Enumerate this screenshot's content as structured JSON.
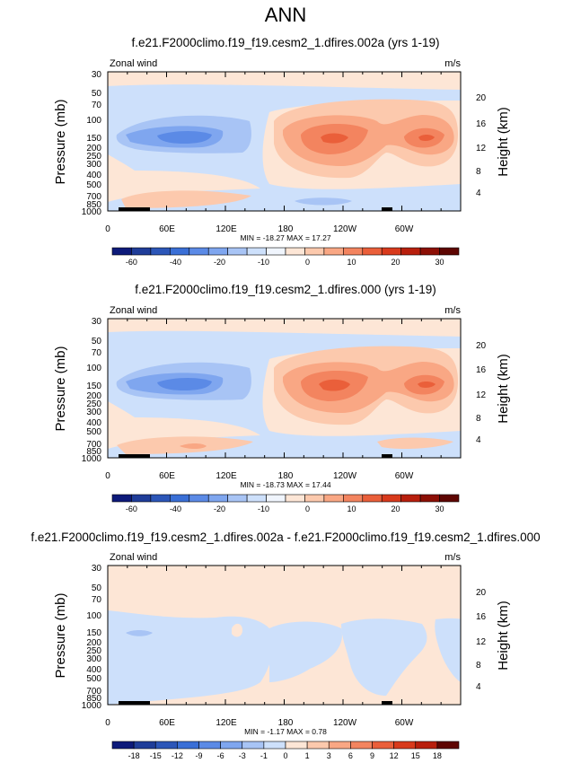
{
  "page_title": "ANN",
  "chart_data": [
    {
      "type": "heatmap",
      "title": "f.e21.F2000climo.f19_f19.cesm2_1.dfires.002a (yrs 1-19)",
      "left_label": "Zonal wind",
      "right_label": "m/s",
      "ylabel": "Pressure (mb)",
      "ylabel_right": "Height (km)",
      "x_ticks": [
        "0",
        "60E",
        "120E",
        "180",
        "120W",
        "60W"
      ],
      "y_ticks": [
        "30",
        "50",
        "70",
        "100",
        "150",
        "200",
        "250",
        "300",
        "400",
        "500",
        "700",
        "850",
        "1000"
      ],
      "height_ticks": [
        "20",
        "16",
        "12",
        "8",
        "4"
      ],
      "min_max": "MIN = -18.27  MAX = 17.27",
      "colorbar_labels": [
        "-60",
        "-40",
        "-20",
        "-10",
        "0",
        "10",
        "20",
        "30"
      ],
      "colorbar_colors": [
        "#0d1a7a",
        "#1f3d99",
        "#2c56b8",
        "#3a6fd6",
        "#5b8ae6",
        "#7fa6ef",
        "#a8c4f5",
        "#cde0fb",
        "#f0f5fd",
        "#fde6d6",
        "#fcc9ad",
        "#f9a784",
        "#f3845f",
        "#ea5f3a",
        "#d83a1c",
        "#b81f0d",
        "#8c0f05",
        "#5e0602"
      ],
      "fields": [
        {
          "center_lon": 75,
          "center_p": 150,
          "value": -18.27
        },
        {
          "center_lon": 210,
          "center_p": 150,
          "value": 17.27
        },
        {
          "center_lon": 295,
          "center_p": 150,
          "value": 14
        },
        {
          "center_lon": 80,
          "center_p": 850,
          "value": 6
        },
        {
          "center_lon": 215,
          "center_p": 900,
          "value": -6
        }
      ]
    },
    {
      "type": "heatmap",
      "title": "f.e21.F2000climo.f19_f19.cesm2_1.dfires.000 (yrs 1-19)",
      "left_label": "Zonal wind",
      "right_label": "m/s",
      "ylabel": "Pressure (mb)",
      "ylabel_right": "Height (km)",
      "x_ticks": [
        "0",
        "60E",
        "120E",
        "180",
        "120W",
        "60W"
      ],
      "y_ticks": [
        "30",
        "50",
        "70",
        "100",
        "150",
        "200",
        "250",
        "300",
        "400",
        "500",
        "700",
        "850",
        "1000"
      ],
      "height_ticks": [
        "20",
        "16",
        "12",
        "8",
        "4"
      ],
      "min_max": "MIN = -18.73  MAX = 17.44",
      "colorbar_labels": [
        "-60",
        "-40",
        "-20",
        "-10",
        "0",
        "10",
        "20",
        "30"
      ],
      "colorbar_colors": [
        "#0d1a7a",
        "#1f3d99",
        "#2c56b8",
        "#3a6fd6",
        "#5b8ae6",
        "#7fa6ef",
        "#a8c4f5",
        "#cde0fb",
        "#f0f5fd",
        "#fde6d6",
        "#fcc9ad",
        "#f9a784",
        "#f3845f",
        "#ea5f3a",
        "#d83a1c",
        "#b81f0d",
        "#8c0f05",
        "#5e0602"
      ],
      "fields": [
        {
          "center_lon": 75,
          "center_p": 150,
          "value": -18.73
        },
        {
          "center_lon": 210,
          "center_p": 150,
          "value": 17.44
        },
        {
          "center_lon": 295,
          "center_p": 150,
          "value": 14
        },
        {
          "center_lon": 80,
          "center_p": 850,
          "value": 6
        },
        {
          "center_lon": 215,
          "center_p": 900,
          "value": -6
        }
      ]
    },
    {
      "type": "heatmap",
      "title": "f.e21.F2000climo.f19_f19.cesm2_1.dfires.002a - f.e21.F2000climo.f19_f19.cesm2_1.dfires.000",
      "left_label": "Zonal wind",
      "right_label": "m/s",
      "ylabel": "Pressure (mb)",
      "ylabel_right": "Height (km)",
      "x_ticks": [
        "0",
        "60E",
        "120E",
        "180",
        "120W",
        "60W"
      ],
      "y_ticks": [
        "30",
        "50",
        "70",
        "100",
        "150",
        "200",
        "250",
        "300",
        "400",
        "500",
        "700",
        "850",
        "1000"
      ],
      "height_ticks": [
        "20",
        "16",
        "12",
        "8",
        "4"
      ],
      "min_max": "MIN = -1.17  MAX =  0.78",
      "colorbar_labels": [
        "-18",
        "-15",
        "-12",
        "-9",
        "-6",
        "-3",
        "-1",
        "0",
        "1",
        "3",
        "6",
        "9",
        "12",
        "15",
        "18"
      ],
      "colorbar_colors": [
        "#0d1a7a",
        "#1f3d99",
        "#2c56b8",
        "#3a6fd6",
        "#5b8ae6",
        "#7fa6ef",
        "#a8c4f5",
        "#cde0fb",
        "#fde6d6",
        "#fcc9ad",
        "#f9a784",
        "#f3845f",
        "#ea5f3a",
        "#d83a1c",
        "#b81f0d",
        "#5e0602"
      ],
      "fields": [
        {
          "center_lon": 15,
          "center_p": 250,
          "value": -1.17
        },
        {
          "center_lon": 160,
          "center_p": 80,
          "value": 0.78
        }
      ]
    }
  ]
}
